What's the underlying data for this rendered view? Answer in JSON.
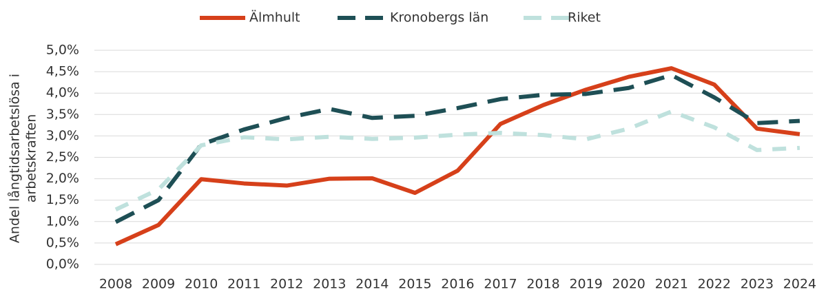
{
  "chart_data": {
    "type": "line",
    "ylabel": [
      "Andel långtidsarbetslösa i",
      "arbetskraften"
    ],
    "categories": [
      "2008",
      "2009",
      "2010",
      "2011",
      "2012",
      "2013",
      "2014",
      "2015",
      "2016",
      "2017",
      "2018",
      "2019",
      "2020",
      "2021",
      "2022",
      "2023",
      "2024"
    ],
    "series": [
      {
        "name": "Älmhult",
        "color": "#d6401a",
        "line_style": "solid",
        "values": [
          0.47,
          0.92,
          1.99,
          1.89,
          1.84,
          2.0,
          2.01,
          1.67,
          2.19,
          3.28,
          3.72,
          4.08,
          4.38,
          4.58,
          4.2,
          3.17,
          3.04
        ]
      },
      {
        "name": "Kronobergs län",
        "color": "#1e4f55",
        "line_style": "long-dash",
        "values": [
          0.99,
          1.5,
          2.8,
          3.15,
          3.42,
          3.63,
          3.42,
          3.47,
          3.65,
          3.86,
          3.96,
          3.98,
          4.12,
          4.42,
          3.9,
          3.3,
          3.35
        ]
      },
      {
        "name": "Riket",
        "color": "#bfe1dd",
        "line_style": "dash",
        "values": [
          1.28,
          1.75,
          2.78,
          2.97,
          2.92,
          2.98,
          2.93,
          2.96,
          3.03,
          3.07,
          3.02,
          2.92,
          3.17,
          3.57,
          3.2,
          2.67,
          2.72
        ]
      }
    ],
    "ylim": [
      0,
      5
    ],
    "yticks": [
      {
        "value": 0,
        "label": "0,0%"
      },
      {
        "value": 0.5,
        "label": "0,5%"
      },
      {
        "value": 1,
        "label": "1,0%"
      },
      {
        "value": 1.5,
        "label": "1,5%"
      },
      {
        "value": 2,
        "label": "2,0%"
      },
      {
        "value": 2.5,
        "label": "2,5%"
      },
      {
        "value": 3,
        "label": "3,0%"
      },
      {
        "value": 3.5,
        "label": "3,5%"
      },
      {
        "value": 4,
        "label": "4,0%"
      },
      {
        "value": 4.5,
        "label": "4,5%"
      },
      {
        "value": 5,
        "label": "5,0%"
      }
    ],
    "grid": true,
    "legend": "top"
  }
}
